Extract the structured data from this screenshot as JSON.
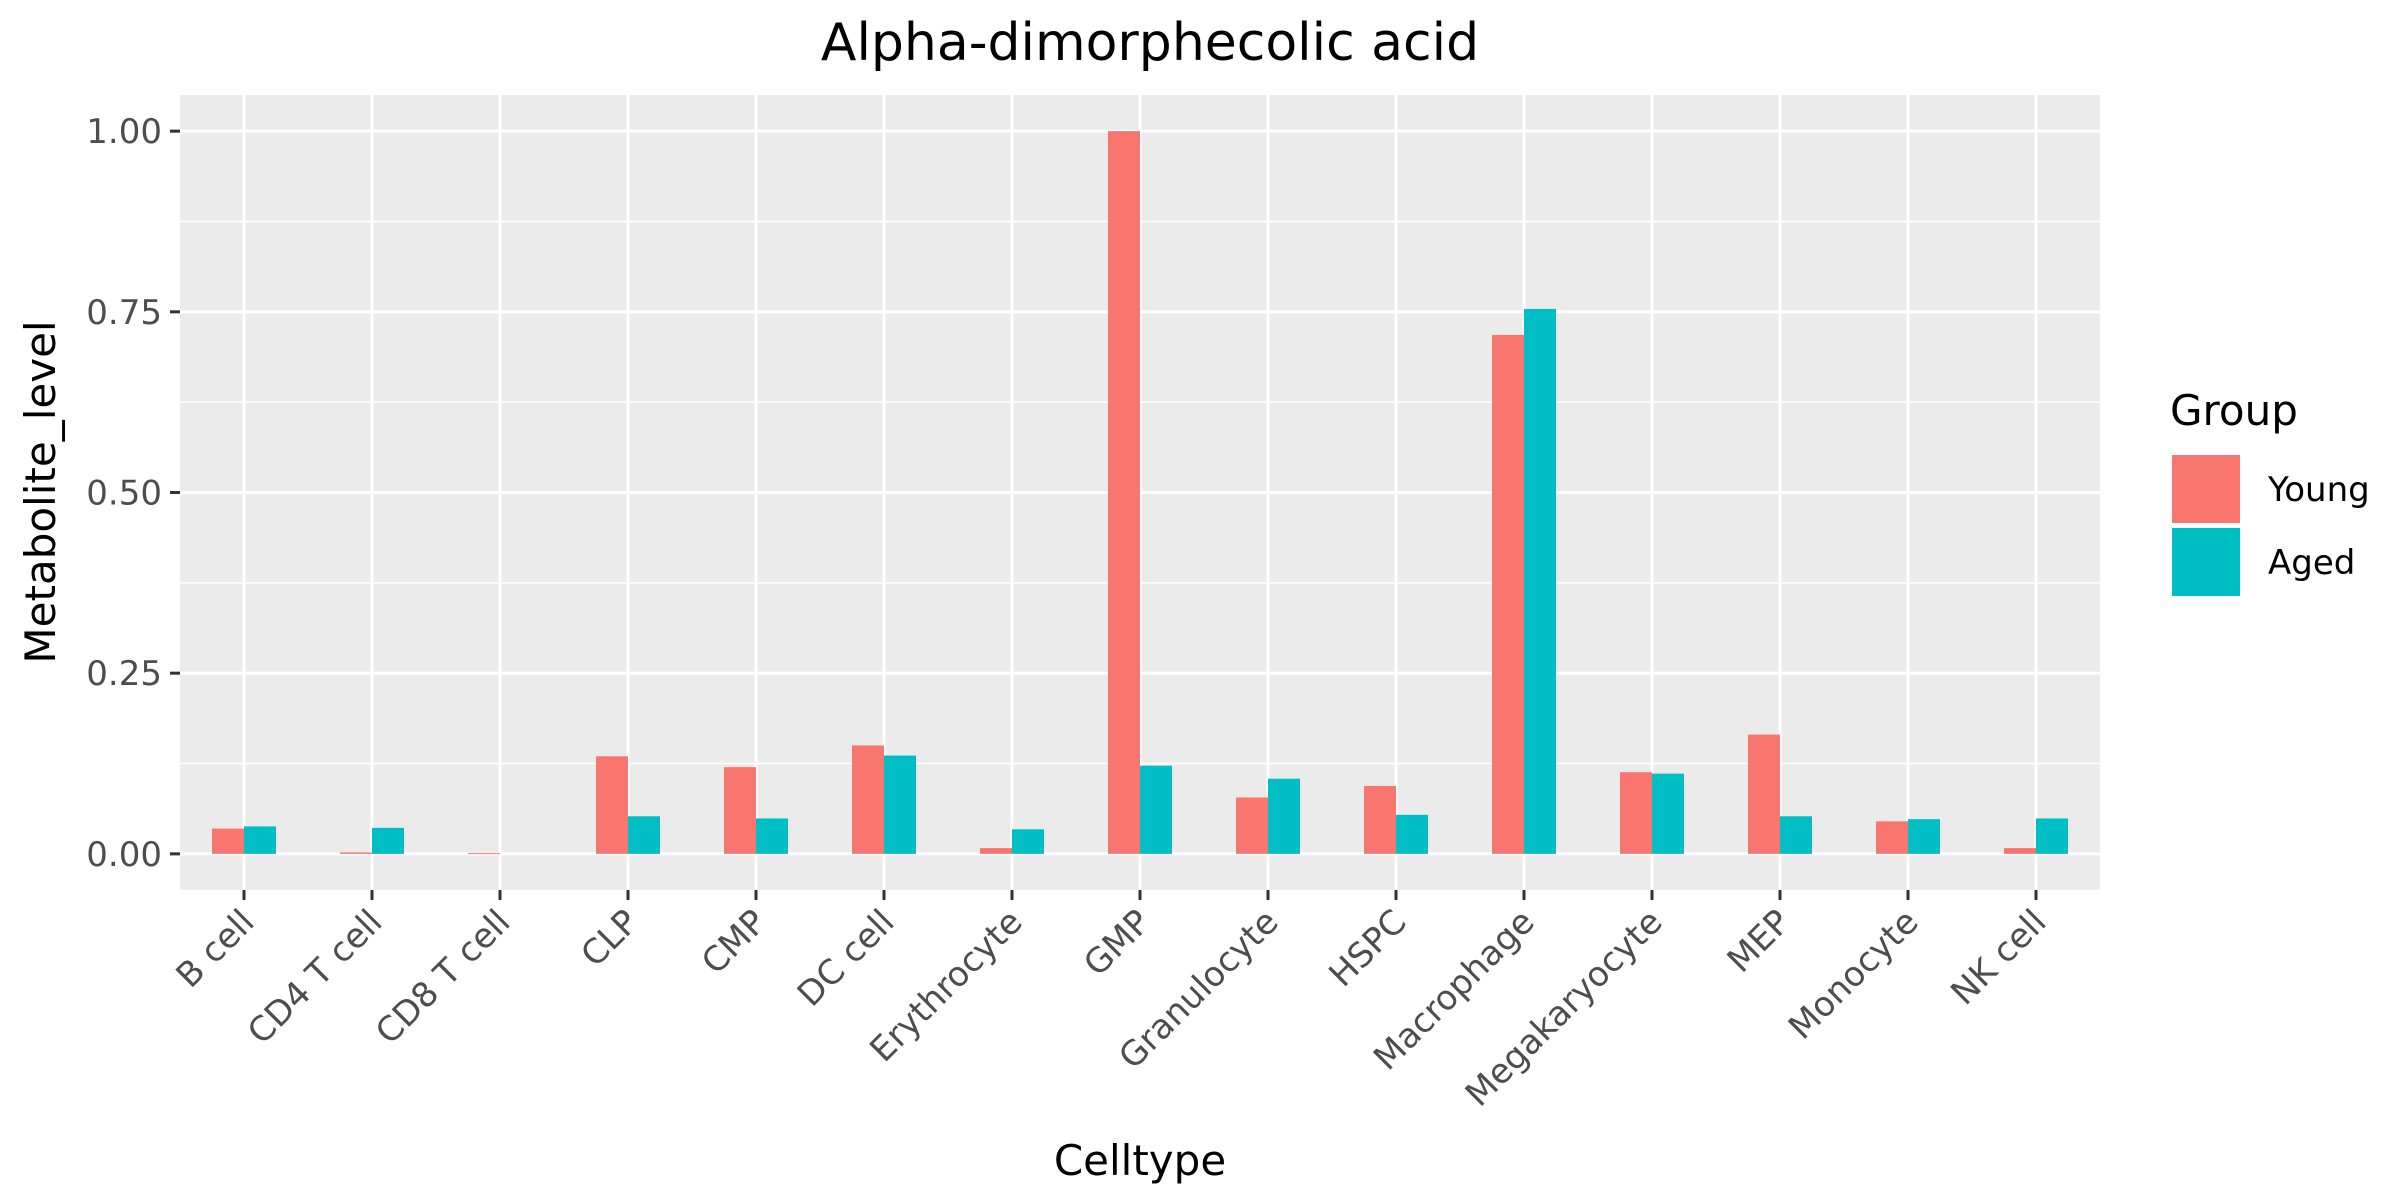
{
  "chart_data": {
    "type": "bar",
    "title": "Alpha-dimorphecolic acid",
    "xlabel": "Celltype",
    "ylabel": "Metabolite_level",
    "categories": [
      "B cell",
      "CD4 T cell",
      "CD8 T cell",
      "CLP",
      "CMP",
      "DC cell",
      "Erythrocyte",
      "GMP",
      "Granulocyte",
      "HSPC",
      "Macrophage",
      "Megakaryocyte",
      "MEP",
      "Monocyte",
      "NK cell"
    ],
    "series": [
      {
        "name": "Young",
        "color": "#F8766D",
        "values": [
          0.035,
          0.002,
          0.001,
          0.135,
          0.12,
          0.15,
          0.008,
          1.0,
          0.078,
          0.094,
          0.718,
          0.113,
          0.165,
          0.045,
          0.008
        ]
      },
      {
        "name": "Aged",
        "color": "#00BFC4",
        "values": [
          0.038,
          0.036,
          null,
          0.052,
          0.049,
          0.136,
          0.034,
          0.122,
          0.104,
          0.054,
          0.754,
          0.111,
          0.052,
          0.048,
          0.049
        ]
      }
    ],
    "ylim": [
      -0.05,
      1.05
    ],
    "yticks": [
      0.0,
      0.25,
      0.5,
      0.75,
      1.0
    ],
    "ytick_labels": [
      "0.00",
      "0.25",
      "0.50",
      "0.75",
      "1.00"
    ],
    "legend": {
      "title": "Group",
      "position": "right"
    },
    "grid": true,
    "panel_background": "#EBEBEB",
    "grid_color": "#FFFFFF"
  }
}
